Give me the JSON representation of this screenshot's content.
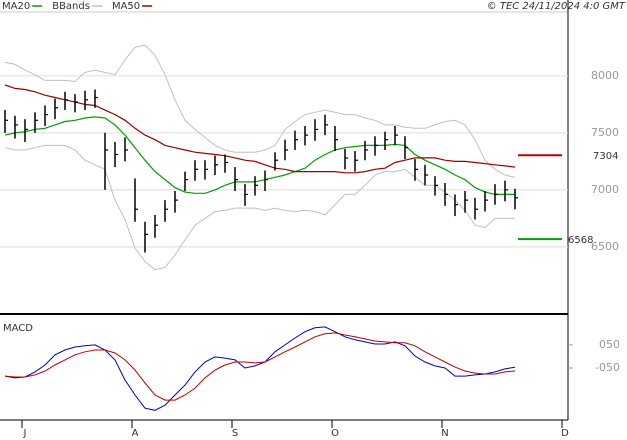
{
  "chart_data": [
    {
      "type": "ohlc",
      "source": "© TEC 24/11/2024 4:0 GMT",
      "categories": [
        null,
        null,
        "J",
        null,
        null,
        null,
        null,
        null,
        null,
        null,
        null,
        null,
        null,
        "A",
        null,
        null,
        null,
        null,
        null,
        null,
        null,
        null,
        null,
        "S",
        null,
        null,
        null,
        null,
        null,
        null,
        null,
        null,
        null,
        "O",
        null,
        null,
        null,
        null,
        null,
        null,
        null,
        null,
        null,
        null,
        "N",
        null,
        null,
        null,
        null,
        null,
        null,
        null,
        null,
        null,
        null,
        null,
        "D"
      ],
      "color": "#000000",
      "high": [
        7700,
        7650,
        7620,
        7680,
        7740,
        7800,
        7860,
        7840,
        7870,
        7880,
        7500,
        7420,
        7460,
        7100,
        6720,
        6780,
        6910,
        6990,
        7160,
        7260,
        7260,
        7300,
        7310,
        7200,
        7050,
        7120,
        7170,
        7330,
        7440,
        7520,
        7560,
        7620,
        7660,
        7560,
        7360,
        7340,
        7430,
        7470,
        7510,
        7560,
        7470,
        7270,
        7220,
        7120,
        7060,
        6960,
        6990,
        6930,
        6990,
        7050,
        7080,
        7010,
        null,
        null,
        null,
        null,
        null
      ],
      "low": [
        7500,
        7450,
        7420,
        7500,
        7560,
        7620,
        7700,
        7680,
        7700,
        7720,
        7000,
        7200,
        7250,
        6720,
        6450,
        6580,
        6720,
        6800,
        6990,
        7080,
        7090,
        7130,
        7150,
        6990,
        6860,
        6950,
        6990,
        7170,
        7260,
        7350,
        7390,
        7430,
        7480,
        7340,
        7180,
        7160,
        7260,
        7300,
        7350,
        7390,
        7270,
        7080,
        7040,
        6950,
        6860,
        6770,
        6800,
        6740,
        6810,
        6870,
        6900,
        6830,
        null,
        null,
        null,
        null,
        null
      ],
      "close": [
        7610,
        7570,
        7530,
        7610,
        7660,
        7720,
        7790,
        7770,
        7790,
        7810,
        7350,
        7310,
        7350,
        6830,
        6610,
        6690,
        6830,
        6910,
        7090,
        7180,
        7180,
        7220,
        7240,
        7090,
        6960,
        7040,
        7090,
        7260,
        7350,
        7440,
        7480,
        7530,
        7570,
        7440,
        7280,
        7260,
        7350,
        7390,
        7440,
        7480,
        7370,
        7180,
        7130,
        7040,
        6960,
        6870,
        6910,
        6830,
        6910,
        6960,
        7000,
        6930,
        null,
        null,
        null,
        null,
        null
      ],
      "series": [
        {
          "name": "MA20",
          "color": "#00a000",
          "values": [
            7480,
            7500,
            7510,
            7530,
            7540,
            7570,
            7600,
            7610,
            7630,
            7640,
            7630,
            7570,
            7480,
            7370,
            7260,
            7160,
            7090,
            7020,
            6980,
            6970,
            6970,
            7000,
            7040,
            7070,
            7070,
            7070,
            7090,
            7110,
            7130,
            7160,
            7190,
            7260,
            7310,
            7350,
            7370,
            7380,
            7390,
            7390,
            7390,
            7400,
            7390,
            7310,
            7260,
            7220,
            7180,
            7130,
            7090,
            7020,
            6980,
            6960,
            6960,
            6960,
            null,
            null,
            null,
            null,
            null
          ]
        },
        {
          "name": "BBands",
          "color": "#c0c0c0",
          "upper": [
            8120,
            8100,
            8050,
            8010,
            7960,
            7960,
            7960,
            7950,
            8030,
            8050,
            8030,
            8010,
            8140,
            8250,
            8270,
            8180,
            8010,
            7790,
            7610,
            7530,
            7460,
            7390,
            7350,
            7330,
            7330,
            7330,
            7350,
            7390,
            7530,
            7600,
            7660,
            7680,
            7700,
            7680,
            7660,
            7660,
            7630,
            7610,
            7570,
            7570,
            7550,
            7540,
            7540,
            7570,
            7600,
            7610,
            7570,
            7440,
            7260,
            7180,
            7130,
            7110,
            null,
            null,
            null,
            null,
            null
          ],
          "lower": [
            7370,
            7350,
            7350,
            7370,
            7390,
            7390,
            7390,
            7350,
            7260,
            7220,
            7180,
            6910,
            6740,
            6490,
            6370,
            6300,
            6320,
            6430,
            6560,
            6690,
            6750,
            6810,
            6820,
            6840,
            6840,
            6840,
            6820,
            6840,
            6820,
            6810,
            6820,
            6810,
            6780,
            6870,
            6960,
            6960,
            7040,
            7130,
            7160,
            7160,
            7180,
            7110,
            7040,
            7040,
            6980,
            6910,
            6820,
            6690,
            6670,
            6750,
            6750,
            6750,
            null,
            null,
            null,
            null,
            null
          ]
        },
        {
          "name": "MA50",
          "color": "#a00000",
          "values": [
            7920,
            7890,
            7880,
            7860,
            7830,
            7810,
            7790,
            7770,
            7750,
            7740,
            7700,
            7660,
            7610,
            7540,
            7480,
            7440,
            7390,
            7370,
            7350,
            7330,
            7320,
            7310,
            7300,
            7280,
            7260,
            7250,
            7220,
            7190,
            7180,
            7160,
            7160,
            7160,
            7160,
            7160,
            7150,
            7150,
            7160,
            7180,
            7190,
            7240,
            7260,
            7280,
            7280,
            7280,
            7260,
            7250,
            7250,
            7240,
            7230,
            7220,
            7210,
            7200,
            null,
            null,
            null,
            null,
            null
          ]
        }
      ],
      "annotations": [
        {
          "value": 7304,
          "color": "#c00000"
        },
        {
          "value": 6568,
          "color": "#00a000"
        }
      ],
      "ylim": [
        5920,
        8560
      ],
      "yticks": [
        6500,
        7000,
        7500,
        8000
      ],
      "grid": true
    },
    {
      "type": "line",
      "title": "MACD",
      "series": [
        {
          "color": "#0000c0",
          "values": [
            -85,
            -93,
            -89,
            -67,
            -37,
            7,
            28,
            41,
            46,
            50,
            28,
            -15,
            -102,
            -167,
            -224,
            -233,
            -211,
            -167,
            -124,
            -67,
            -24,
            -2,
            -7,
            -15,
            -50,
            -41,
            -24,
            20,
            50,
            80,
            107,
            124,
            128,
            107,
            85,
            72,
            63,
            54,
            54,
            63,
            46,
            2,
            -24,
            -41,
            -50,
            -85,
            -85,
            -80,
            -76,
            -67,
            -54,
            -46,
            null,
            null,
            null,
            null,
            null
          ]
        },
        {
          "color": "#c00000",
          "values": [
            -85,
            -89,
            -89,
            -80,
            -63,
            -37,
            -15,
            7,
            20,
            28,
            28,
            15,
            -15,
            -59,
            -115,
            -167,
            -189,
            -189,
            -167,
            -137,
            -93,
            -59,
            -37,
            -24,
            -24,
            -28,
            -24,
            -2,
            20,
            41,
            63,
            85,
            98,
            102,
            93,
            85,
            76,
            67,
            63,
            59,
            59,
            46,
            20,
            -2,
            -24,
            -46,
            -63,
            -72,
            -76,
            -76,
            -67,
            -63,
            null,
            null,
            null,
            null,
            null
          ]
        }
      ],
      "ylim": [
        -275,
        175
      ],
      "yticks": [
        {
          "value": 50,
          "label": "050"
        },
        {
          "value": -50,
          "label": "-050"
        }
      ]
    }
  ]
}
